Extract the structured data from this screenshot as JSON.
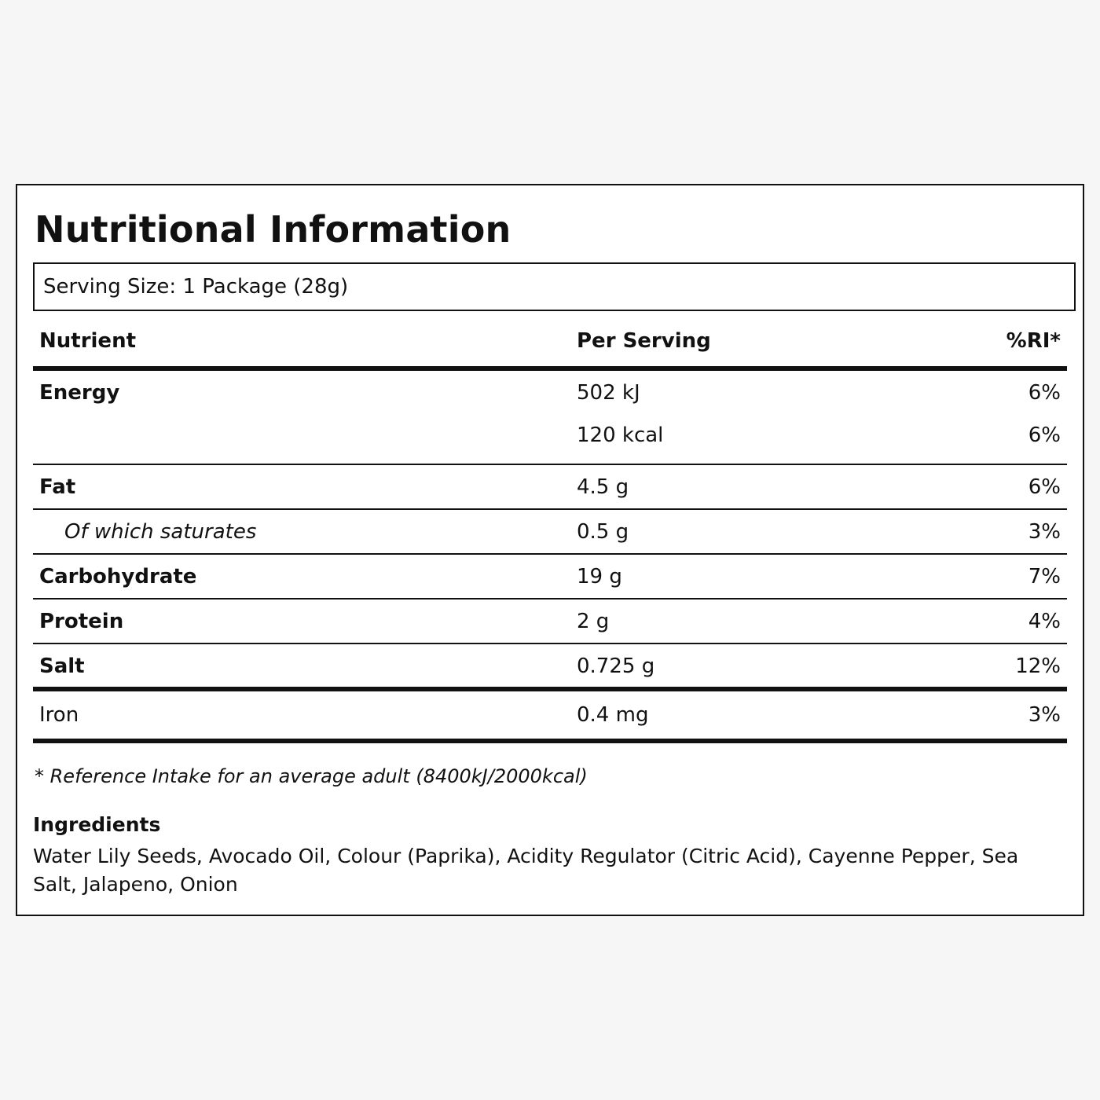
{
  "label": {
    "title": "Nutritional Information",
    "serving_size": "Serving Size: 1 Package (28g)",
    "headers": {
      "nutrient": "Nutrient",
      "per_serving": "Per Serving",
      "ri": "%RI*"
    },
    "rows": [
      {
        "name": "Energy",
        "value": "502 kJ",
        "ri": "6%",
        "value2": "120 kcal",
        "ri2": "6%"
      },
      {
        "name": "Fat",
        "value": "4.5 g",
        "ri": "6%"
      },
      {
        "name": "Of which saturates",
        "value": "0.5 g",
        "ri": "3%"
      },
      {
        "name": "Carbohydrate",
        "value": "19 g",
        "ri": "7%"
      },
      {
        "name": "Protein",
        "value": "2 g",
        "ri": "4%"
      },
      {
        "name": "Salt",
        "value": "0.725 g",
        "ri": "12%"
      },
      {
        "name": "Iron",
        "value": "0.4 mg",
        "ri": "3%"
      }
    ],
    "footnote": "* Reference Intake for an average adult (8400kJ/2000kcal)",
    "ingredients_heading": "Ingredients",
    "ingredients_text": "Water Lily Seeds, Avocado Oil, Colour (Paprika), Acidity Regulator (Citric Acid), Cayenne Pepper, Sea Salt, Jalapeno, Onion"
  }
}
